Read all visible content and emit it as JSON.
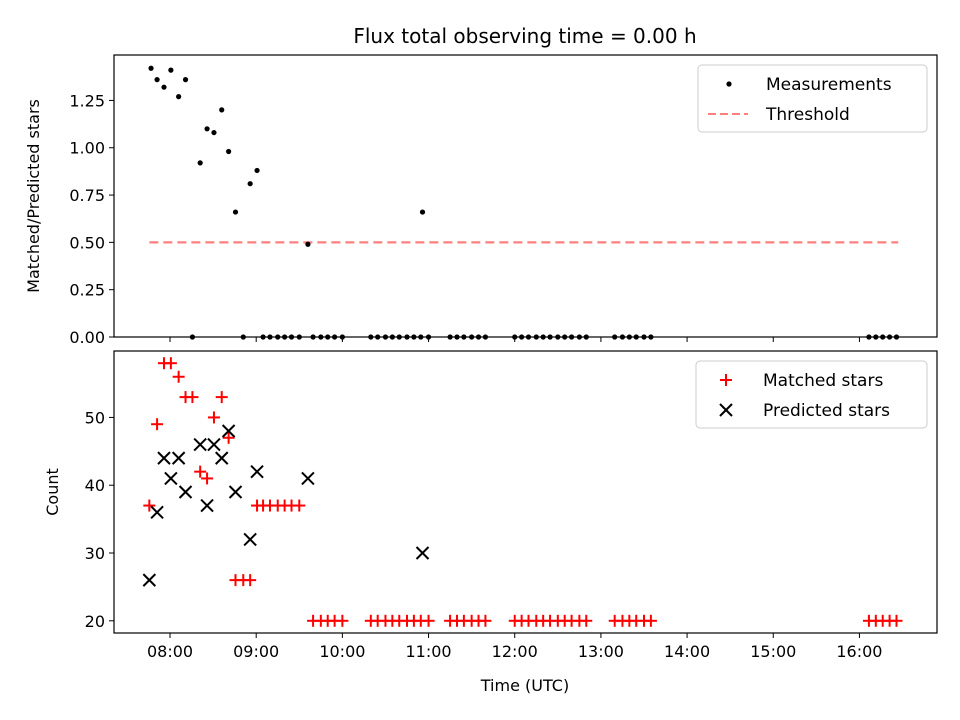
{
  "chart_data": [
    {
      "type": "scatter",
      "title": "Flux total observing time = 0.00 h",
      "ylabel": "Matched/Predicted stars",
      "xlabel": "",
      "ylim": [
        0,
        1.49
      ],
      "yticks": [
        0.0,
        0.25,
        0.5,
        0.75,
        1.0,
        1.25
      ],
      "ytick_labels": [
        "0.00",
        "0.25",
        "0.50",
        "0.75",
        "1.00",
        "1.25"
      ],
      "legend_position": "top-right",
      "series": [
        {
          "name": "Measurements",
          "marker": "dot",
          "color": "#000000",
          "points": [
            [
              7.78,
              1.42
            ],
            [
              7.85,
              1.36
            ],
            [
              7.93,
              1.32
            ],
            [
              8.01,
              1.41
            ],
            [
              8.1,
              1.27
            ],
            [
              8.18,
              1.36
            ],
            [
              8.35,
              0.92
            ],
            [
              8.43,
              1.1
            ],
            [
              8.51,
              1.08
            ],
            [
              8.6,
              1.2
            ],
            [
              8.68,
              0.98
            ],
            [
              8.76,
              0.66
            ],
            [
              8.93,
              0.81
            ],
            [
              9.01,
              0.88
            ],
            [
              9.6,
              0.49
            ],
            [
              10.93,
              0.66
            ],
            [
              8.26,
              0.0
            ],
            [
              8.85,
              0.0
            ],
            [
              9.08,
              0.0
            ],
            [
              9.16,
              0.0
            ],
            [
              9.25,
              0.0
            ],
            [
              9.33,
              0.0
            ],
            [
              9.41,
              0.0
            ],
            [
              9.5,
              0.0
            ],
            [
              9.66,
              0.0
            ],
            [
              9.75,
              0.0
            ],
            [
              9.83,
              0.0
            ],
            [
              9.91,
              0.0
            ],
            [
              10.0,
              0.0
            ],
            [
              10.33,
              0.0
            ],
            [
              10.41,
              0.0
            ],
            [
              10.5,
              0.0
            ],
            [
              10.58,
              0.0
            ],
            [
              10.66,
              0.0
            ],
            [
              10.75,
              0.0
            ],
            [
              10.83,
              0.0
            ],
            [
              10.91,
              0.0
            ],
            [
              11.0,
              0.0
            ],
            [
              11.25,
              0.0
            ],
            [
              11.33,
              0.0
            ],
            [
              11.41,
              0.0
            ],
            [
              11.5,
              0.0
            ],
            [
              11.58,
              0.0
            ],
            [
              11.66,
              0.0
            ],
            [
              12.0,
              0.0
            ],
            [
              12.08,
              0.0
            ],
            [
              12.16,
              0.0
            ],
            [
              12.25,
              0.0
            ],
            [
              12.33,
              0.0
            ],
            [
              12.41,
              0.0
            ],
            [
              12.5,
              0.0
            ],
            [
              12.58,
              0.0
            ],
            [
              12.66,
              0.0
            ],
            [
              12.75,
              0.0
            ],
            [
              12.83,
              0.0
            ],
            [
              13.16,
              0.0
            ],
            [
              13.25,
              0.0
            ],
            [
              13.33,
              0.0
            ],
            [
              13.41,
              0.0
            ],
            [
              13.5,
              0.0
            ],
            [
              13.58,
              0.0
            ],
            [
              16.11,
              0.0
            ],
            [
              16.19,
              0.0
            ],
            [
              16.27,
              0.0
            ],
            [
              16.35,
              0.0
            ],
            [
              16.43,
              0.0
            ]
          ]
        },
        {
          "name": "Threshold",
          "marker": "dashed-line",
          "color": "#ff7f7f",
          "points": [
            [
              7.76,
              0.5
            ],
            [
              16.45,
              0.5
            ]
          ]
        }
      ]
    },
    {
      "type": "scatter",
      "title": "",
      "xlabel": "Time (UTC)",
      "ylabel": "Count",
      "xlim": [
        7.35,
        16.9
      ],
      "ylim": [
        18.2,
        59.8
      ],
      "xticks": [
        8,
        9,
        10,
        11,
        12,
        13,
        14,
        15,
        16
      ],
      "xtick_labels": [
        "08:00",
        "09:00",
        "10:00",
        "11:00",
        "12:00",
        "13:00",
        "14:00",
        "15:00",
        "16:00"
      ],
      "yticks": [
        20,
        30,
        40,
        50
      ],
      "ytick_labels": [
        "20",
        "30",
        "40",
        "50"
      ],
      "legend_position": "top-right",
      "series": [
        {
          "name": "Matched stars",
          "marker": "plus",
          "color": "#ff0000",
          "points": [
            [
              7.76,
              37
            ],
            [
              7.85,
              49
            ],
            [
              7.93,
              58
            ],
            [
              8.01,
              58
            ],
            [
              8.1,
              56
            ],
            [
              8.18,
              53
            ],
            [
              8.26,
              53
            ],
            [
              8.35,
              42
            ],
            [
              8.43,
              41
            ],
            [
              8.51,
              50
            ],
            [
              8.6,
              53
            ],
            [
              8.68,
              47
            ],
            [
              8.76,
              26
            ],
            [
              8.85,
              26
            ],
            [
              8.93,
              26
            ],
            [
              9.01,
              37
            ],
            [
              9.08,
              37
            ],
            [
              9.16,
              37
            ],
            [
              9.25,
              37
            ],
            [
              9.33,
              37
            ],
            [
              9.41,
              37
            ],
            [
              9.5,
              37
            ],
            [
              9.66,
              20
            ],
            [
              9.75,
              20
            ],
            [
              9.83,
              20
            ],
            [
              9.91,
              20
            ],
            [
              10.0,
              20
            ],
            [
              10.33,
              20
            ],
            [
              10.41,
              20
            ],
            [
              10.5,
              20
            ],
            [
              10.58,
              20
            ],
            [
              10.66,
              20
            ],
            [
              10.75,
              20
            ],
            [
              10.83,
              20
            ],
            [
              10.91,
              20
            ],
            [
              11.0,
              20
            ],
            [
              11.25,
              20
            ],
            [
              11.33,
              20
            ],
            [
              11.41,
              20
            ],
            [
              11.5,
              20
            ],
            [
              11.58,
              20
            ],
            [
              11.66,
              20
            ],
            [
              12.0,
              20
            ],
            [
              12.08,
              20
            ],
            [
              12.16,
              20
            ],
            [
              12.25,
              20
            ],
            [
              12.33,
              20
            ],
            [
              12.41,
              20
            ],
            [
              12.5,
              20
            ],
            [
              12.58,
              20
            ],
            [
              12.66,
              20
            ],
            [
              12.75,
              20
            ],
            [
              12.83,
              20
            ],
            [
              13.16,
              20
            ],
            [
              13.25,
              20
            ],
            [
              13.33,
              20
            ],
            [
              13.41,
              20
            ],
            [
              13.5,
              20
            ],
            [
              13.58,
              20
            ],
            [
              16.11,
              20
            ],
            [
              16.19,
              20
            ],
            [
              16.27,
              20
            ],
            [
              16.35,
              20
            ],
            [
              16.43,
              20
            ]
          ]
        },
        {
          "name": "Predicted stars",
          "marker": "x",
          "color": "#000000",
          "points": [
            [
              7.76,
              26
            ],
            [
              7.85,
              36
            ],
            [
              7.93,
              44
            ],
            [
              8.01,
              41
            ],
            [
              8.1,
              44
            ],
            [
              8.18,
              39
            ],
            [
              8.35,
              46
            ],
            [
              8.43,
              37
            ],
            [
              8.51,
              46
            ],
            [
              8.6,
              44
            ],
            [
              8.68,
              48
            ],
            [
              8.76,
              39
            ],
            [
              8.93,
              32
            ],
            [
              9.01,
              42
            ],
            [
              9.6,
              41
            ],
            [
              10.93,
              30
            ]
          ]
        }
      ]
    }
  ]
}
